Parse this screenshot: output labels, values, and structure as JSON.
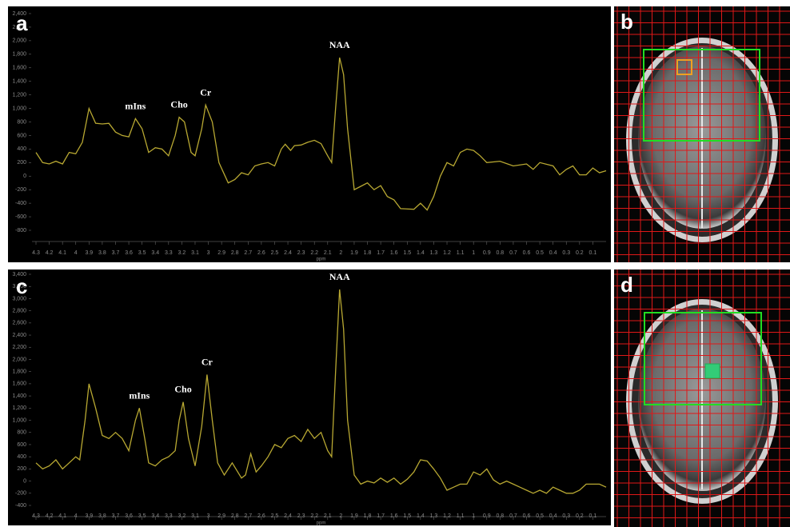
{
  "chart_data": [
    {
      "type": "line",
      "panel_label": "a",
      "x_label": "ppm",
      "color": "#b8a832",
      "xlim": [
        4.3,
        0
      ],
      "ylim": [
        -800,
        2400
      ],
      "grid": false,
      "xticks": [
        4.3,
        4.2,
        4.1,
        4,
        3.9,
        3.8,
        3.7,
        3.6,
        3.5,
        3.4,
        3.3,
        3.2,
        3.1,
        3,
        2.9,
        2.8,
        2.7,
        2.6,
        2.5,
        2.4,
        2.3,
        2.2,
        2.1,
        2,
        1.9,
        1.8,
        1.7,
        1.6,
        1.5,
        1.4,
        1.3,
        1.2,
        1.1,
        1,
        0.9,
        0.8,
        0.7,
        0.6,
        0.5,
        0.4,
        0.3,
        0.2,
        0.1
      ],
      "yticks": [
        {
          "value": 2400,
          "label": "2,400"
        },
        {
          "value": 2200,
          "label": "2,200"
        },
        {
          "value": 2000,
          "label": "2,000"
        },
        {
          "value": 1800,
          "label": "1,800"
        },
        {
          "value": 1600,
          "label": "1,600"
        },
        {
          "value": 1400,
          "label": "1,400"
        },
        {
          "value": 1200,
          "label": "1,200"
        },
        {
          "value": 1000,
          "label": "1,000"
        },
        800,
        600,
        400,
        200,
        0,
        -200,
        -400,
        -600,
        -800
      ],
      "x": [
        4.3,
        4.25,
        4.2,
        4.15,
        4.1,
        4.05,
        4.0,
        3.95,
        3.9,
        3.85,
        3.8,
        3.75,
        3.7,
        3.65,
        3.6,
        3.55,
        3.5,
        3.45,
        3.4,
        3.35,
        3.3,
        3.25,
        3.22,
        3.18,
        3.13,
        3.1,
        3.05,
        3.02,
        2.97,
        2.92,
        2.85,
        2.8,
        2.75,
        2.7,
        2.65,
        2.6,
        2.55,
        2.5,
        2.45,
        2.42,
        2.38,
        2.35,
        2.3,
        2.25,
        2.2,
        2.15,
        2.1,
        2.07,
        2.04,
        2.01,
        1.98,
        1.95,
        1.9,
        1.85,
        1.8,
        1.75,
        1.7,
        1.65,
        1.6,
        1.55,
        1.45,
        1.4,
        1.35,
        1.3,
        1.25,
        1.2,
        1.15,
        1.1,
        1.05,
        1.0,
        0.95,
        0.9,
        0.8,
        0.7,
        0.6,
        0.55,
        0.5,
        0.4,
        0.35,
        0.3,
        0.25,
        0.2,
        0.15,
        0.1,
        0.05,
        0
      ],
      "values": [
        350,
        200,
        180,
        220,
        180,
        350,
        330,
        500,
        1000,
        780,
        770,
        780,
        650,
        600,
        580,
        850,
        700,
        350,
        420,
        400,
        300,
        600,
        870,
        800,
        350,
        300,
        700,
        1050,
        800,
        200,
        -100,
        -50,
        50,
        20,
        150,
        180,
        200,
        150,
        400,
        470,
        380,
        450,
        460,
        500,
        530,
        480,
        300,
        200,
        1000,
        1750,
        1500,
        700,
        -200,
        -150,
        -100,
        -200,
        -140,
        -300,
        -350,
        -480,
        -490,
        -400,
        -500,
        -300,
        0,
        200,
        150,
        350,
        400,
        380,
        300,
        200,
        220,
        150,
        180,
        100,
        200,
        150,
        20,
        100,
        150,
        20,
        20,
        120,
        50,
        80
      ],
      "annotations": [
        {
          "text": "mIns",
          "x": 3.55,
          "y": 850
        },
        {
          "text": "Cho",
          "x": 3.22,
          "y": 870
        },
        {
          "text": "Cr",
          "x": 3.02,
          "y": 1050
        },
        {
          "text": "NAA",
          "x": 2.01,
          "y": 1750
        }
      ]
    },
    {
      "type": "line",
      "panel_label": "c",
      "x_label": "ppm",
      "color": "#b8a832",
      "xlim": [
        4.3,
        0
      ],
      "ylim": [
        -400,
        3400
      ],
      "grid": false,
      "xticks": [
        4.3,
        4.2,
        4.1,
        4,
        3.9,
        3.8,
        3.7,
        3.6,
        3.5,
        3.4,
        3.3,
        3.2,
        3.1,
        3,
        2.9,
        2.8,
        2.7,
        2.6,
        2.5,
        2.4,
        2.3,
        2.2,
        2.1,
        2,
        1.9,
        1.8,
        1.7,
        1.6,
        1.5,
        1.4,
        1.3,
        1.2,
        1.1,
        1,
        0.9,
        0.8,
        0.7,
        0.6,
        0.5,
        0.4,
        0.3,
        0.2,
        0.1
      ],
      "yticks": [
        {
          "value": 3400,
          "label": "3,400"
        },
        {
          "value": 3200,
          "label": "3,200"
        },
        {
          "value": 3000,
          "label": "3,000"
        },
        {
          "value": 2800,
          "label": "2,800"
        },
        {
          "value": 2600,
          "label": "2,600"
        },
        {
          "value": 2400,
          "label": "2,400"
        },
        {
          "value": 2200,
          "label": "2,200"
        },
        {
          "value": 2000,
          "label": "2,000"
        },
        {
          "value": 1800,
          "label": "1,800"
        },
        {
          "value": 1600,
          "label": "1,600"
        },
        {
          "value": 1400,
          "label": "1,400"
        },
        {
          "value": 1200,
          "label": "1,200"
        },
        {
          "value": 1000,
          "label": "1,000"
        },
        800,
        600,
        400,
        200,
        0,
        -200,
        -400
      ],
      "x": [
        4.3,
        4.25,
        4.2,
        4.15,
        4.1,
        4.05,
        4.0,
        3.97,
        3.93,
        3.9,
        3.85,
        3.8,
        3.75,
        3.7,
        3.65,
        3.6,
        3.55,
        3.52,
        3.48,
        3.45,
        3.4,
        3.35,
        3.3,
        3.25,
        3.22,
        3.19,
        3.15,
        3.1,
        3.05,
        3.01,
        2.97,
        2.93,
        2.88,
        2.82,
        2.75,
        2.72,
        2.68,
        2.64,
        2.6,
        2.55,
        2.5,
        2.45,
        2.4,
        2.35,
        2.3,
        2.25,
        2.2,
        2.15,
        2.1,
        2.07,
        2.04,
        2.01,
        1.98,
        1.95,
        1.9,
        1.85,
        1.8,
        1.75,
        1.7,
        1.65,
        1.6,
        1.55,
        1.5,
        1.45,
        1.4,
        1.35,
        1.3,
        1.25,
        1.2,
        1.15,
        1.1,
        1.05,
        1.0,
        0.95,
        0.9,
        0.85,
        0.8,
        0.75,
        0.7,
        0.65,
        0.6,
        0.55,
        0.5,
        0.45,
        0.4,
        0.35,
        0.3,
        0.25,
        0.2,
        0.15,
        0.1,
        0.05,
        0
      ],
      "values": [
        300,
        200,
        250,
        350,
        200,
        300,
        400,
        350,
        1000,
        1600,
        1200,
        750,
        700,
        800,
        700,
        500,
        1000,
        1200,
        700,
        300,
        250,
        350,
        400,
        500,
        1000,
        1300,
        700,
        250,
        900,
        1750,
        1000,
        300,
        100,
        300,
        50,
        100,
        450,
        150,
        250,
        400,
        600,
        550,
        700,
        750,
        650,
        850,
        700,
        800,
        500,
        400,
        1800,
        3150,
        2500,
        1000,
        100,
        -50,
        0,
        -30,
        50,
        -20,
        50,
        -50,
        30,
        150,
        350,
        330,
        200,
        50,
        -150,
        -100,
        -50,
        -50,
        150,
        100,
        200,
        20,
        -50,
        0,
        -50,
        -100,
        -150,
        -200,
        -150,
        -200,
        -100,
        -150,
        -200,
        -200,
        -150,
        -50,
        -50,
        -50,
        -100
      ],
      "annotations": [
        {
          "text": "mIns",
          "x": 3.52,
          "y": 1200
        },
        {
          "text": "Cho",
          "x": 3.19,
          "y": 1300
        },
        {
          "text": "Cr",
          "x": 3.01,
          "y": 1750
        },
        {
          "text": "NAA",
          "x": 2.01,
          "y": 3150
        }
      ]
    }
  ],
  "images": [
    {
      "panel_label": "b"
    },
    {
      "panel_label": "d"
    }
  ]
}
